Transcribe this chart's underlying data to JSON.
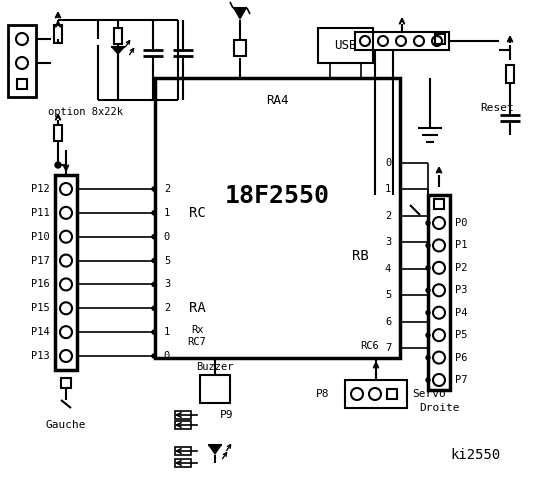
{
  "bg_color": "#ffffff",
  "line_color": "#000000",
  "title": "ki2550",
  "chip_label": "18F2550",
  "chip_sublabel": "RA4",
  "left_connector_label": "Gauche",
  "right_connector_label": "Droite",
  "left_pins": [
    "P12",
    "P11",
    "P10",
    "P17",
    "P16",
    "P15",
    "P14",
    "P13"
  ],
  "right_pins": [
    "P0",
    "P1",
    "P2",
    "P3",
    "P4",
    "P5",
    "P6",
    "P7"
  ],
  "rc_label": "RC",
  "ra_label": "RA",
  "rb_label": "RB",
  "option_label": "option 8x22k",
  "usb_label": "USB",
  "reset_label": "Reset",
  "buzzer_label": "Buzzer",
  "servo_label": "Servo",
  "p8_label": "P8",
  "p9_label": "P9",
  "rx_label": "Rx",
  "rc7_label": "RC7",
  "rc6_label": "RC6"
}
